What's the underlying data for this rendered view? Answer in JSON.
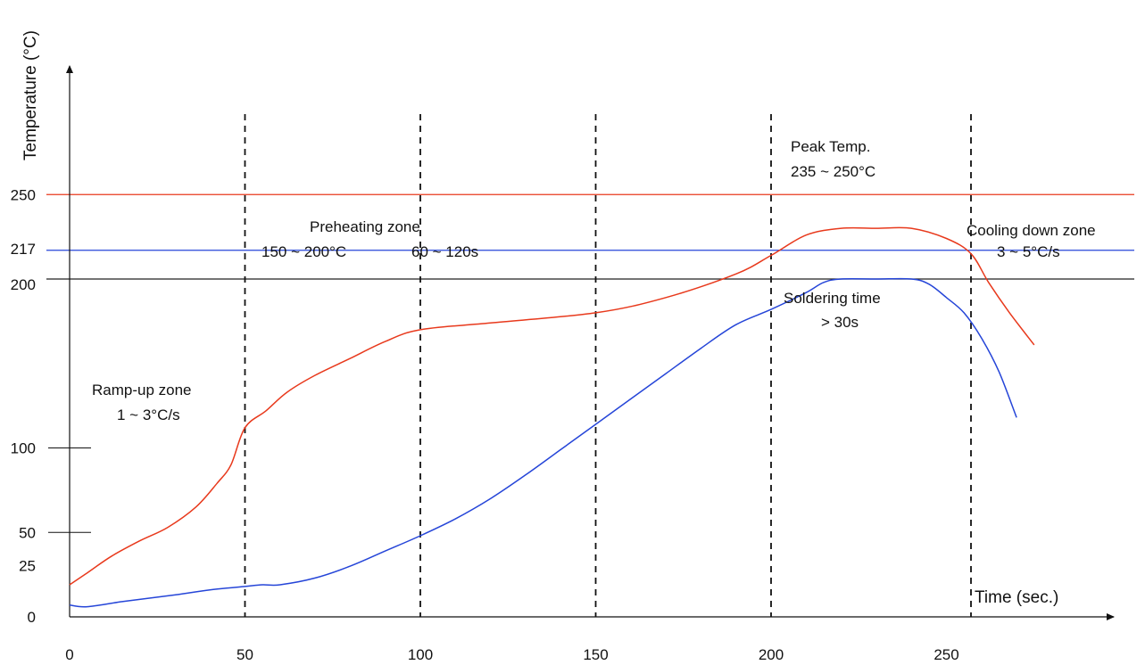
{
  "chart_data": {
    "type": "line",
    "title": "",
    "xlabel": "Time (sec.)",
    "ylabel": "Temperature (°C)",
    "xlim": [
      0,
      300
    ],
    "ylim": [
      0,
      310
    ],
    "x_ticks": [
      0,
      50,
      100,
      150,
      200,
      250
    ],
    "y_ticks": [
      0,
      25,
      50,
      100,
      200,
      217,
      250
    ],
    "grid": false,
    "legend": "none",
    "series": [
      {
        "color": "#e8391c",
        "x": [
          0,
          5,
          12,
          20,
          28,
          36,
          42,
          46,
          50,
          56,
          62,
          70,
          80,
          90,
          100,
          120,
          150,
          170,
          190,
          200,
          210,
          220,
          230,
          240,
          250,
          257,
          262,
          268,
          275
        ],
        "y": [
          19,
          26,
          36,
          45,
          53,
          65,
          79,
          90,
          112,
          122,
          133,
          143,
          153,
          163,
          170,
          174,
          180,
          189,
          203,
          214,
          226,
          230,
          230,
          230,
          224,
          215,
          198,
          180,
          161
        ]
      },
      {
        "color": "#2545d8",
        "x": [
          0,
          5,
          15,
          30,
          40,
          50,
          55,
          60,
          70,
          80,
          90,
          100,
          110,
          120,
          130,
          140,
          150,
          160,
          170,
          180,
          190,
          200,
          210,
          215,
          220,
          230,
          240,
          245,
          250,
          255,
          260,
          265,
          270
        ],
        "y": [
          7,
          6,
          9,
          13,
          16,
          18,
          19,
          19,
          23,
          30,
          39,
          48,
          58,
          70,
          84,
          99,
          114,
          129,
          144,
          159,
          173,
          182,
          192,
          198,
          200,
          200,
          200,
          197,
          189,
          180,
          165,
          145,
          118
        ]
      }
    ],
    "reference_lines": [
      {
        "value": 250,
        "color": "#e8391c"
      },
      {
        "value": 217,
        "color": "#2545d8"
      },
      {
        "value": 200,
        "color": "#222222"
      }
    ],
    "zone_boundaries_x": [
      50,
      100,
      150,
      200,
      257
    ],
    "annotations": {
      "ramp_up_title": "Ramp-up zone",
      "ramp_up_rate": "1 ~ 3°C/s",
      "preheating_title": "Preheating zone",
      "preheating_temp": "150 ~ 200°C",
      "preheating_time": "60 ~ 120s",
      "peak_title": "Peak Temp.",
      "peak_range": "235 ~ 250°C",
      "soldering_title": "Soldering time",
      "soldering_value": "> 30s",
      "cooling_title": "Cooling down zone",
      "cooling_rate": "3 ~ 5°C/s"
    }
  }
}
